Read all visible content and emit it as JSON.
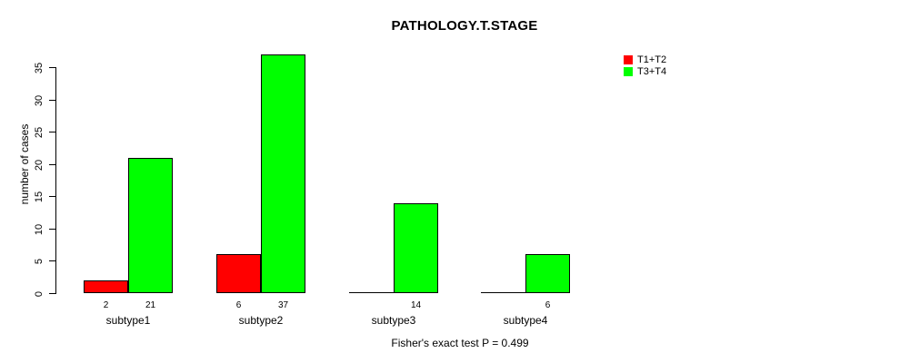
{
  "chart_data": {
    "type": "bar",
    "title": "PATHOLOGY.T.STAGE",
    "ylabel": "number of cases",
    "xlabel": "",
    "categories": [
      "subtype1",
      "subtype2",
      "subtype3",
      "subtype4"
    ],
    "series": [
      {
        "name": "T1+T2",
        "color": "#ff0000",
        "values": [
          2,
          6,
          0,
          0
        ]
      },
      {
        "name": "T3+T4",
        "color": "#00ff00",
        "values": [
          21,
          37,
          14,
          6
        ]
      }
    ],
    "bar_value_labels": [
      [
        "2",
        "21"
      ],
      [
        "6",
        "37"
      ],
      [
        "",
        "14"
      ],
      [
        "",
        "6"
      ]
    ],
    "yticks": [
      0,
      5,
      10,
      15,
      20,
      25,
      30,
      35
    ],
    "ylim": [
      0,
      37
    ],
    "grid": false,
    "legend_position": "top-right",
    "footer": "Fisher's exact test P = 0.499",
    "axis_color": "#000000",
    "background_color": "#ffffff"
  }
}
